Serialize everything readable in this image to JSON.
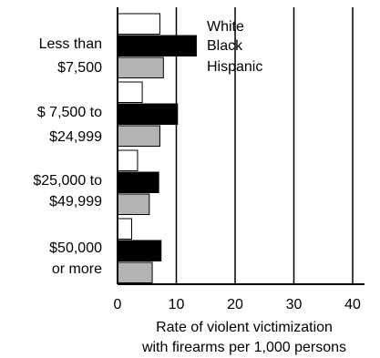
{
  "chart_data": {
    "type": "bar",
    "orientation": "horizontal",
    "categories": [
      [
        "Less than",
        "$7,500"
      ],
      [
        "$ 7,500 to",
        "$24,999"
      ],
      [
        "$25,000 to",
        "$49,999"
      ],
      [
        "$50,000",
        "or more"
      ]
    ],
    "series": [
      {
        "name": "White",
        "values": [
          7.2,
          4.2,
          3.4,
          2.4
        ],
        "color": "#ffffff"
      },
      {
        "name": "Black",
        "values": [
          13.4,
          10.2,
          7.0,
          7.4
        ],
        "color": "#000000"
      },
      {
        "name": "Hispanic",
        "values": [
          7.8,
          7.2,
          5.4,
          5.9
        ],
        "color": "#b3b3b3"
      }
    ],
    "xlim": [
      0,
      42
    ],
    "xticks": [
      "0",
      "10",
      "20",
      "30",
      "40"
    ],
    "xlabel": [
      "Rate of violent victimization",
      "with firearms per 1,000 persons"
    ],
    "legend": {
      "placement": "top-right",
      "entries": [
        "White",
        "Black",
        "Hispanic"
      ]
    },
    "grid": true
  }
}
